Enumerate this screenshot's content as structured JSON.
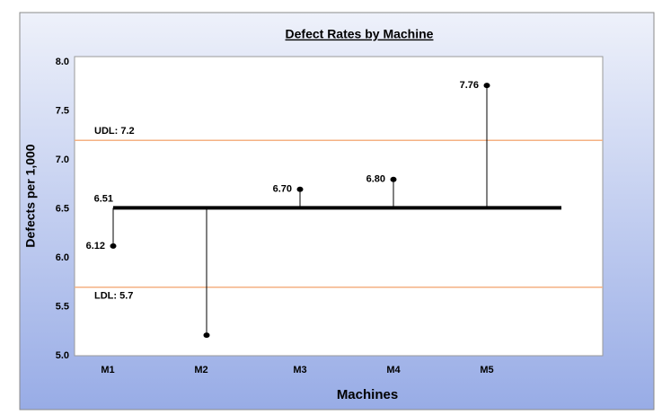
{
  "chart_data": {
    "type": "lollipop",
    "title": "Defect Rates by Machine",
    "x_label": "Machines",
    "y_label": "Defects per 1,000",
    "categories": [
      "M1",
      "M2",
      "M3",
      "M4",
      "M5"
    ],
    "values": [
      6.12,
      5.21,
      6.7,
      6.8,
      7.76
    ],
    "value_labels": [
      "6.12",
      null,
      "6.70",
      "6.80",
      "7.76"
    ],
    "color": "#000000",
    "center_line": 6.51,
    "limits": [
      {
        "value": 7.2,
        "label": "UDL: 7.2",
        "color": "#f4b183"
      },
      {
        "value": 5.7,
        "label": "LDL: 5.7",
        "color": "#f4b183"
      }
    ],
    "ylim": [
      5.0,
      8.0
    ],
    "yticks": [
      {
        "value": 5.0,
        "label": "5.0"
      },
      5.5,
      {
        "value": 6.0,
        "label": "6.0"
      },
      6.5,
      {
        "value": 7.0,
        "label": "7.0"
      },
      7.5,
      {
        "value": 8.0,
        "label": "8.0"
      }
    ],
    "grid": false
  }
}
